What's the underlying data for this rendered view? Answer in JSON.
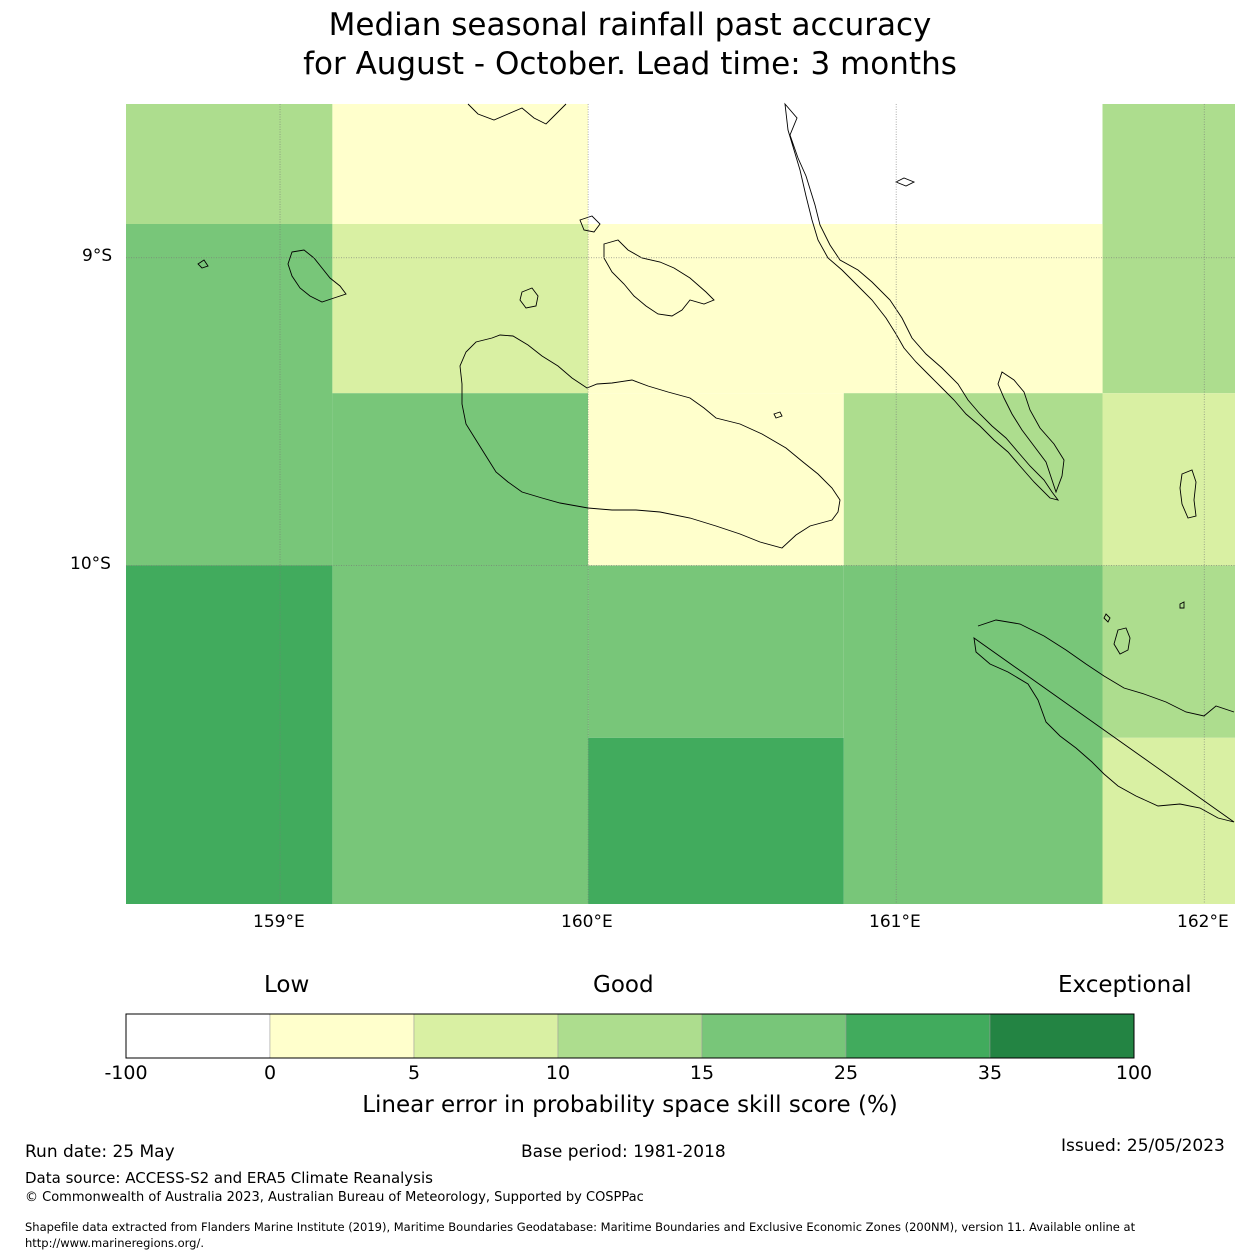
{
  "title": {
    "line1": "Median seasonal rainfall past accuracy",
    "line2": "for August - October. Lead time: 3 months"
  },
  "map": {
    "lat_labels": [
      "9°S",
      "10°S"
    ],
    "lon_labels": [
      "159°E",
      "160°E",
      "161°E",
      "162°E"
    ],
    "lon_range": [
      158.5,
      162.1
    ],
    "lat_range": [
      -8.5,
      -11.1
    ],
    "category_colors": [
      "#ffffff",
      "#ffffcc",
      "#d9f0a3",
      "#addd8e",
      "#78c679",
      "#41ab5d",
      "#238443"
    ],
    "grid_cells": [
      {
        "lon": [
          158.5,
          159.17
        ],
        "lat": [
          -8.5,
          -8.89
        ],
        "category": 3
      },
      {
        "lon": [
          159.17,
          160.0
        ],
        "lat": [
          -8.5,
          -8.89
        ],
        "category": 1
      },
      {
        "lon": [
          160.0,
          161.67
        ],
        "lat": [
          -8.5,
          -8.89
        ],
        "category": 0
      },
      {
        "lon": [
          161.67,
          162.1
        ],
        "lat": [
          -8.5,
          -9.44
        ],
        "category": 3
      },
      {
        "lon": [
          158.5,
          159.17
        ],
        "lat": [
          -8.89,
          -10.0
        ],
        "category": 4
      },
      {
        "lon": [
          159.17,
          160.0
        ],
        "lat": [
          -8.89,
          -9.44
        ],
        "category": 2
      },
      {
        "lon": [
          160.0,
          161.67
        ],
        "lat": [
          -8.89,
          -9.44
        ],
        "category": 1
      },
      {
        "lon": [
          159.17,
          160.0
        ],
        "lat": [
          -9.44,
          -10.0
        ],
        "category": 4
      },
      {
        "lon": [
          160.0,
          160.83
        ],
        "lat": [
          -9.44,
          -10.0
        ],
        "category": 1
      },
      {
        "lon": [
          160.83,
          161.67
        ],
        "lat": [
          -9.44,
          -10.0
        ],
        "category": 3
      },
      {
        "lon": [
          161.67,
          162.1
        ],
        "lat": [
          -9.44,
          -10.0
        ],
        "category": 2
      },
      {
        "lon": [
          158.5,
          159.17
        ],
        "lat": [
          -10.0,
          -11.1
        ],
        "category": 5
      },
      {
        "lon": [
          159.17,
          160.0
        ],
        "lat": [
          -10.0,
          -11.1
        ],
        "category": 4
      },
      {
        "lon": [
          160.0,
          160.83
        ],
        "lat": [
          -10.0,
          -10.56
        ],
        "category": 4
      },
      {
        "lon": [
          160.0,
          160.83
        ],
        "lat": [
          -10.56,
          -11.1
        ],
        "category": 5
      },
      {
        "lon": [
          160.83,
          161.67
        ],
        "lat": [
          -10.0,
          -11.1
        ],
        "category": 4
      },
      {
        "lon": [
          161.67,
          162.1
        ],
        "lat": [
          -10.0,
          -10.56
        ],
        "category": 3
      },
      {
        "lon": [
          161.67,
          162.1
        ],
        "lat": [
          -10.56,
          -11.1
        ],
        "category": 2
      }
    ]
  },
  "colorbar": {
    "words": [
      "Low",
      "Good",
      "Exceptional"
    ],
    "ticks": [
      "-100",
      "0",
      "5",
      "10",
      "15",
      "25",
      "35",
      "100"
    ],
    "colors": [
      "#ffffff",
      "#ffffcc",
      "#d9f0a3",
      "#addd8e",
      "#78c679",
      "#41ab5d",
      "#238443"
    ],
    "label": "Linear error in probability space skill score (%)"
  },
  "footer": {
    "run_date": "Run date: 25 May",
    "base_period": "Base period: 1981-2018",
    "issued": "Issued: 25/05/2023",
    "data_source": "Data source: ACCESS-S2 and ERA5 Climate Reanalysis",
    "copyright": "© Commonwealth of Australia 2023, Australian Bureau of Meteorology, Supported by COSPPac",
    "shapefile_line1": "Shapefile data extracted from Flanders Marine Institute (2019), Maritime Boundaries Geodatabase: Maritime Boundaries and Exclusive Economic Zones (200NM), version 11. Available online at",
    "shapefile_line2": "http://www.marineregions.org/."
  }
}
